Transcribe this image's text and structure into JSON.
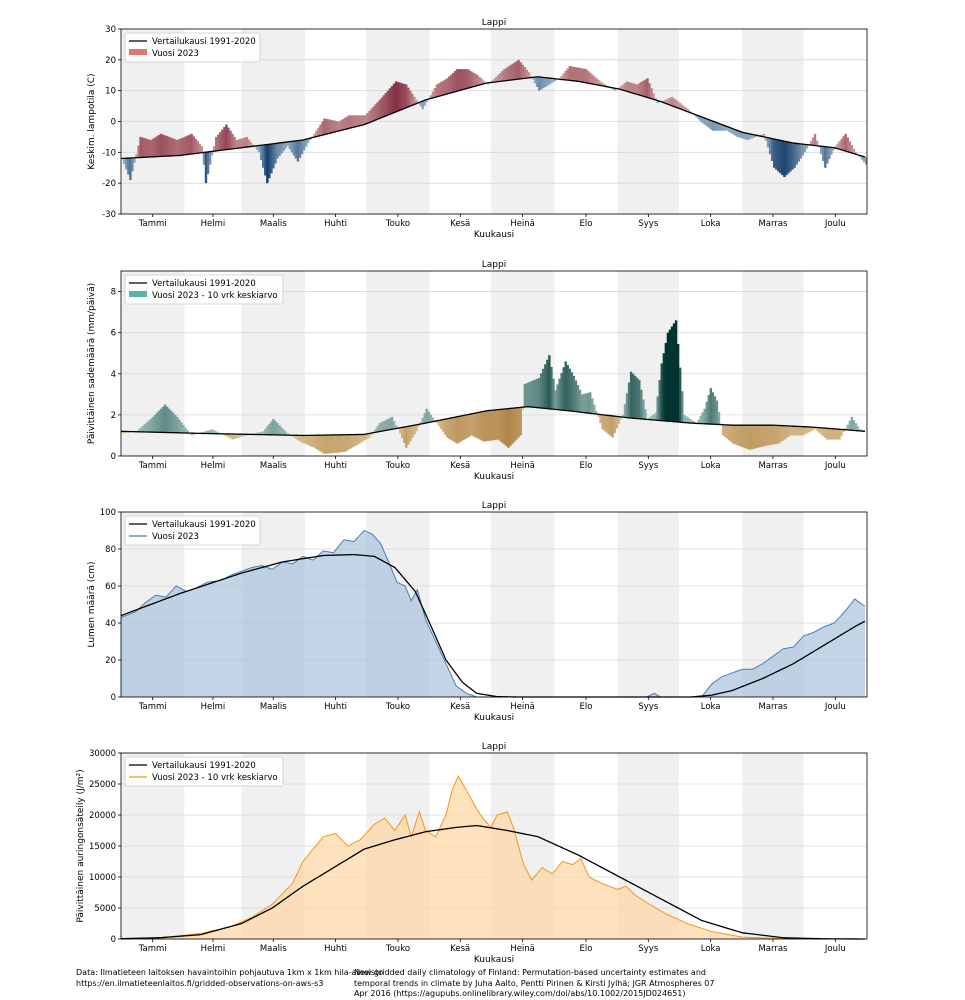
{
  "months": [
    "Tammi",
    "Helmi",
    "Maalis",
    "Huhti",
    "Touko",
    "Kesä",
    "Heinä",
    "Elo",
    "Syys",
    "Loka",
    "Marras",
    "Joulu"
  ],
  "xlabel": "Kuukausi",
  "chart_data": [
    {
      "type": "bar",
      "title": "Lappi",
      "xlabel": "Kuukausi",
      "ylabel": "Keskim. lampotila (C)",
      "ylim": [
        -30,
        30
      ],
      "yticks": [
        -30,
        -20,
        -10,
        0,
        10,
        20,
        30
      ],
      "legend": [
        "Vertailukausi 1991-2020",
        "Vuosi 2023"
      ],
      "legend_position": "upper-left",
      "colors": {
        "above": "#b2182b",
        "below": "#2166ac",
        "line": "#000000"
      },
      "reference_knots": [
        [
          1,
          -12
        ],
        [
          30,
          -11
        ],
        [
          60,
          -8.5
        ],
        [
          90,
          -6
        ],
        [
          120,
          -1
        ],
        [
          150,
          7
        ],
        [
          180,
          12.5
        ],
        [
          205,
          14.5
        ],
        [
          225,
          13
        ],
        [
          245,
          10.5
        ],
        [
          265,
          6.5
        ],
        [
          285,
          1.5
        ],
        [
          305,
          -3.5
        ],
        [
          330,
          -7
        ],
        [
          350,
          -8.5
        ],
        [
          365,
          -11.5
        ]
      ],
      "year_knots": [
        [
          1,
          -12
        ],
        [
          5,
          -19
        ],
        [
          10,
          -5
        ],
        [
          15,
          -6
        ],
        [
          20,
          -4
        ],
        [
          28,
          -6
        ],
        [
          35,
          -4
        ],
        [
          40,
          -8
        ],
        [
          42,
          -20
        ],
        [
          47,
          -5
        ],
        [
          52,
          -1
        ],
        [
          57,
          -6
        ],
        [
          62,
          -5
        ],
        [
          68,
          -10
        ],
        [
          72,
          -20
        ],
        [
          77,
          -12
        ],
        [
          82,
          -8
        ],
        [
          87,
          -13
        ],
        [
          92,
          -7
        ],
        [
          100,
          1
        ],
        [
          107,
          0
        ],
        [
          112,
          2
        ],
        [
          120,
          2
        ],
        [
          127,
          7
        ],
        [
          135,
          13
        ],
        [
          140,
          12
        ],
        [
          148,
          4
        ],
        [
          155,
          12
        ],
        [
          160,
          14
        ],
        [
          165,
          17
        ],
        [
          170,
          17
        ],
        [
          175,
          15
        ],
        [
          180,
          12
        ],
        [
          188,
          17
        ],
        [
          195,
          20
        ],
        [
          200,
          16
        ],
        [
          205,
          10
        ],
        [
          210,
          12
        ],
        [
          215,
          14
        ],
        [
          220,
          18
        ],
        [
          228,
          17
        ],
        [
          235,
          13
        ],
        [
          242,
          10
        ],
        [
          248,
          13
        ],
        [
          253,
          12
        ],
        [
          258,
          14
        ],
        [
          263,
          6
        ],
        [
          270,
          8
        ],
        [
          278,
          4
        ],
        [
          284,
          0
        ],
        [
          290,
          -3
        ],
        [
          297,
          -3
        ],
        [
          302,
          -5
        ],
        [
          307,
          -6
        ],
        [
          315,
          -4
        ],
        [
          320,
          -15
        ],
        [
          325,
          -18
        ],
        [
          330,
          -15
        ],
        [
          335,
          -10
        ],
        [
          340,
          -4
        ],
        [
          345,
          -15
        ],
        [
          350,
          -8
        ],
        [
          355,
          -4
        ],
        [
          360,
          -10
        ],
        [
          365,
          -14
        ]
      ]
    },
    {
      "type": "bar",
      "title": "Lappi",
      "xlabel": "Kuukausi",
      "ylabel": "Päivittäinen sademäärä (mm/päivä)",
      "ylim": [
        0,
        9
      ],
      "yticks": [
        0,
        2,
        4,
        6,
        8
      ],
      "legend": [
        "Vertailukausi 1991-2020",
        "Vuosi 2023 - 10 vrk keskiarvo"
      ],
      "legend_position": "upper-left",
      "colors": {
        "above": "#01665e",
        "below": "#bf812d",
        "line": "#000000"
      },
      "reference_knots": [
        [
          1,
          1.2
        ],
        [
          40,
          1.1
        ],
        [
          90,
          1.0
        ],
        [
          120,
          1.05
        ],
        [
          150,
          1.6
        ],
        [
          180,
          2.2
        ],
        [
          200,
          2.4
        ],
        [
          220,
          2.2
        ],
        [
          250,
          1.85
        ],
        [
          280,
          1.6
        ],
        [
          300,
          1.5
        ],
        [
          320,
          1.5
        ],
        [
          340,
          1.4
        ],
        [
          365,
          1.2
        ]
      ],
      "year_knots": [
        [
          1,
          1.1
        ],
        [
          8,
          1.2
        ],
        [
          15,
          1.8
        ],
        [
          22,
          2.5
        ],
        [
          28,
          1.9
        ],
        [
          35,
          1.0
        ],
        [
          45,
          1.3
        ],
        [
          55,
          0.8
        ],
        [
          62,
          1.0
        ],
        [
          70,
          1.2
        ],
        [
          75,
          1.8
        ],
        [
          82,
          1.1
        ],
        [
          88,
          0.7
        ],
        [
          95,
          0.4
        ],
        [
          100,
          0.1
        ],
        [
          110,
          0.2
        ],
        [
          117,
          0.6
        ],
        [
          122,
          0.9
        ],
        [
          127,
          1.6
        ],
        [
          133,
          1.9
        ],
        [
          137,
          1.1
        ],
        [
          140,
          0.4
        ],
        [
          145,
          1.2
        ],
        [
          150,
          2.3
        ],
        [
          155,
          1.6
        ],
        [
          160,
          0.9
        ],
        [
          165,
          0.6
        ],
        [
          172,
          1.0
        ],
        [
          178,
          0.7
        ],
        [
          185,
          0.8
        ],
        [
          190,
          0.4
        ],
        [
          196,
          1.0
        ],
        [
          198,
          3.5
        ],
        [
          205,
          3.8
        ],
        [
          210,
          4.9
        ],
        [
          213,
          3.2
        ],
        [
          218,
          4.6
        ],
        [
          222,
          3.9
        ],
        [
          226,
          3.0
        ],
        [
          230,
          3.1
        ],
        [
          236,
          1.3
        ],
        [
          241,
          0.9
        ],
        [
          246,
          2.0
        ],
        [
          250,
          4.1
        ],
        [
          254,
          3.7
        ],
        [
          258,
          1.8
        ],
        [
          262,
          2.1
        ],
        [
          265,
          4.5
        ],
        [
          268,
          6.0
        ],
        [
          272,
          6.6
        ],
        [
          276,
          2.0
        ],
        [
          282,
          1.6
        ],
        [
          286,
          2.3
        ],
        [
          289,
          3.3
        ],
        [
          292,
          2.7
        ],
        [
          295,
          1.0
        ],
        [
          300,
          0.6
        ],
        [
          308,
          0.3
        ],
        [
          316,
          0.5
        ],
        [
          322,
          0.6
        ],
        [
          328,
          1.0
        ],
        [
          334,
          1.0
        ],
        [
          340,
          1.3
        ],
        [
          346,
          0.8
        ],
        [
          352,
          0.8
        ],
        [
          358,
          1.9
        ],
        [
          362,
          1.3
        ],
        [
          365,
          1.2
        ]
      ]
    },
    {
      "type": "area",
      "title": "Lappi",
      "xlabel": "Kuukausi",
      "ylabel": "Lumen määrä (cm)",
      "ylim": [
        0,
        100
      ],
      "yticks": [
        0,
        20,
        40,
        60,
        80,
        100
      ],
      "legend": [
        "Vertailukausi 1991-2020",
        "Vuosi 2023"
      ],
      "legend_position": "upper-left",
      "colors": {
        "year": "#4a7fb4",
        "fill": "#a9c2dd",
        "line": "#000000"
      },
      "reference_knots": [
        [
          1,
          44
        ],
        [
          30,
          56
        ],
        [
          60,
          67
        ],
        [
          80,
          73
        ],
        [
          100,
          76.5
        ],
        [
          115,
          77
        ],
        [
          125,
          76
        ],
        [
          135,
          70
        ],
        [
          145,
          57
        ],
        [
          152,
          40
        ],
        [
          160,
          20
        ],
        [
          168,
          8
        ],
        [
          175,
          2
        ],
        [
          185,
          0.2
        ],
        [
          195,
          0
        ],
        [
          280,
          0
        ],
        [
          290,
          1
        ],
        [
          300,
          3.5
        ],
        [
          315,
          10
        ],
        [
          330,
          18
        ],
        [
          345,
          28
        ],
        [
          360,
          38
        ],
        [
          365,
          41
        ]
      ],
      "year_knots": [
        [
          1,
          43
        ],
        [
          8,
          46
        ],
        [
          13,
          51
        ],
        [
          18,
          55
        ],
        [
          23,
          54
        ],
        [
          28,
          60
        ],
        [
          33,
          57
        ],
        [
          38,
          59
        ],
        [
          43,
          62
        ],
        [
          50,
          63
        ],
        [
          55,
          66
        ],
        [
          60,
          68
        ],
        [
          65,
          70
        ],
        [
          70,
          71
        ],
        [
          75,
          69
        ],
        [
          80,
          73
        ],
        [
          85,
          72
        ],
        [
          90,
          76
        ],
        [
          95,
          74
        ],
        [
          100,
          79
        ],
        [
          105,
          78
        ],
        [
          110,
          85
        ],
        [
          115,
          84
        ],
        [
          120,
          90
        ],
        [
          124,
          88
        ],
        [
          128,
          83
        ],
        [
          132,
          73
        ],
        [
          136,
          62
        ],
        [
          140,
          60
        ],
        [
          143,
          52
        ],
        [
          146,
          58
        ],
        [
          150,
          42
        ],
        [
          155,
          30
        ],
        [
          160,
          18
        ],
        [
          165,
          6
        ],
        [
          170,
          2
        ],
        [
          175,
          0
        ],
        [
          190,
          0
        ],
        [
          258,
          0
        ],
        [
          262,
          2
        ],
        [
          265,
          0
        ],
        [
          285,
          0
        ],
        [
          290,
          7
        ],
        [
          295,
          11
        ],
        [
          300,
          13
        ],
        [
          305,
          15
        ],
        [
          310,
          15
        ],
        [
          315,
          18
        ],
        [
          320,
          22
        ],
        [
          325,
          26
        ],
        [
          330,
          27
        ],
        [
          335,
          33
        ],
        [
          340,
          35
        ],
        [
          345,
          38
        ],
        [
          350,
          40
        ],
        [
          355,
          46
        ],
        [
          360,
          53
        ],
        [
          365,
          49
        ]
      ]
    },
    {
      "type": "area",
      "title": "Lappi",
      "xlabel": "Kuukausi",
      "ylabel": "Päivittäinen auringonsäteily (J/m²)",
      "ylim": [
        0,
        30000
      ],
      "yticks": [
        0,
        5000,
        10000,
        15000,
        20000,
        25000,
        30000
      ],
      "legend": [
        "Vertailukausi 1991-2020",
        "Vuosi 2023 - 10 vrk keskiarvo"
      ],
      "legend_position": "upper-left",
      "colors": {
        "year": "#f5961c",
        "fill": "#fdd6a3",
        "line": "#000000"
      },
      "reference_knots": [
        [
          1,
          50
        ],
        [
          20,
          200
        ],
        [
          40,
          700
        ],
        [
          60,
          2500
        ],
        [
          75,
          5000
        ],
        [
          90,
          8500
        ],
        [
          105,
          11500
        ],
        [
          120,
          14500
        ],
        [
          135,
          16000
        ],
        [
          150,
          17300
        ],
        [
          165,
          18000
        ],
        [
          175,
          18300
        ],
        [
          190,
          17500
        ],
        [
          205,
          16500
        ],
        [
          225,
          13500
        ],
        [
          245,
          10000
        ],
        [
          265,
          6500
        ],
        [
          285,
          3000
        ],
        [
          305,
          1000
        ],
        [
          325,
          200
        ],
        [
          345,
          30
        ],
        [
          365,
          0
        ]
      ],
      "year_knots": [
        [
          1,
          50
        ],
        [
          20,
          200
        ],
        [
          40,
          900
        ],
        [
          55,
          2000
        ],
        [
          65,
          3500
        ],
        [
          75,
          5600
        ],
        [
          85,
          9000
        ],
        [
          90,
          12500
        ],
        [
          95,
          14500
        ],
        [
          100,
          16500
        ],
        [
          106,
          17000
        ],
        [
          112,
          15000
        ],
        [
          118,
          16000
        ],
        [
          125,
          18500
        ],
        [
          130,
          19500
        ],
        [
          135,
          17500
        ],
        [
          140,
          20000
        ],
        [
          143,
          16500
        ],
        [
          147,
          20500
        ],
        [
          150,
          17500
        ],
        [
          155,
          16500
        ],
        [
          160,
          20000
        ],
        [
          163,
          24000
        ],
        [
          166,
          26300
        ],
        [
          170,
          24000
        ],
        [
          175,
          21000
        ],
        [
          178,
          19500
        ],
        [
          182,
          18000
        ],
        [
          185,
          20000
        ],
        [
          190,
          20500
        ],
        [
          193,
          18000
        ],
        [
          198,
          12000
        ],
        [
          202,
          9500
        ],
        [
          207,
          11500
        ],
        [
          212,
          10500
        ],
        [
          217,
          12500
        ],
        [
          222,
          12000
        ],
        [
          226,
          13000
        ],
        [
          230,
          10000
        ],
        [
          236,
          9000
        ],
        [
          244,
          8000
        ],
        [
          248,
          8500
        ],
        [
          253,
          7000
        ],
        [
          260,
          5500
        ],
        [
          268,
          4000
        ],
        [
          278,
          2500
        ],
        [
          290,
          1200
        ],
        [
          305,
          300
        ],
        [
          325,
          50
        ],
        [
          365,
          0
        ]
      ]
    }
  ],
  "footer": {
    "left": [
      "Data: Ilmatieteen laitoksen havaintoihin pohjautuva 1km x 1km hila-aineisto",
      "https://en.ilmatieteenlaitos.fi/gridded-observations-on-aws-s3"
    ],
    "right": [
      "New gridded daily climatology of Finland: Permutation-based uncertainty estimates and",
      "temporal trends in climate by Juha Aalto, Pentti Pirinen & Kirsti Jylhä; JGR Atmospheres 07",
      "Apr 2016 (https://agupubs.onlinelibrary.wiley.com/doi/abs/10.1002/2015JD024651)"
    ]
  }
}
